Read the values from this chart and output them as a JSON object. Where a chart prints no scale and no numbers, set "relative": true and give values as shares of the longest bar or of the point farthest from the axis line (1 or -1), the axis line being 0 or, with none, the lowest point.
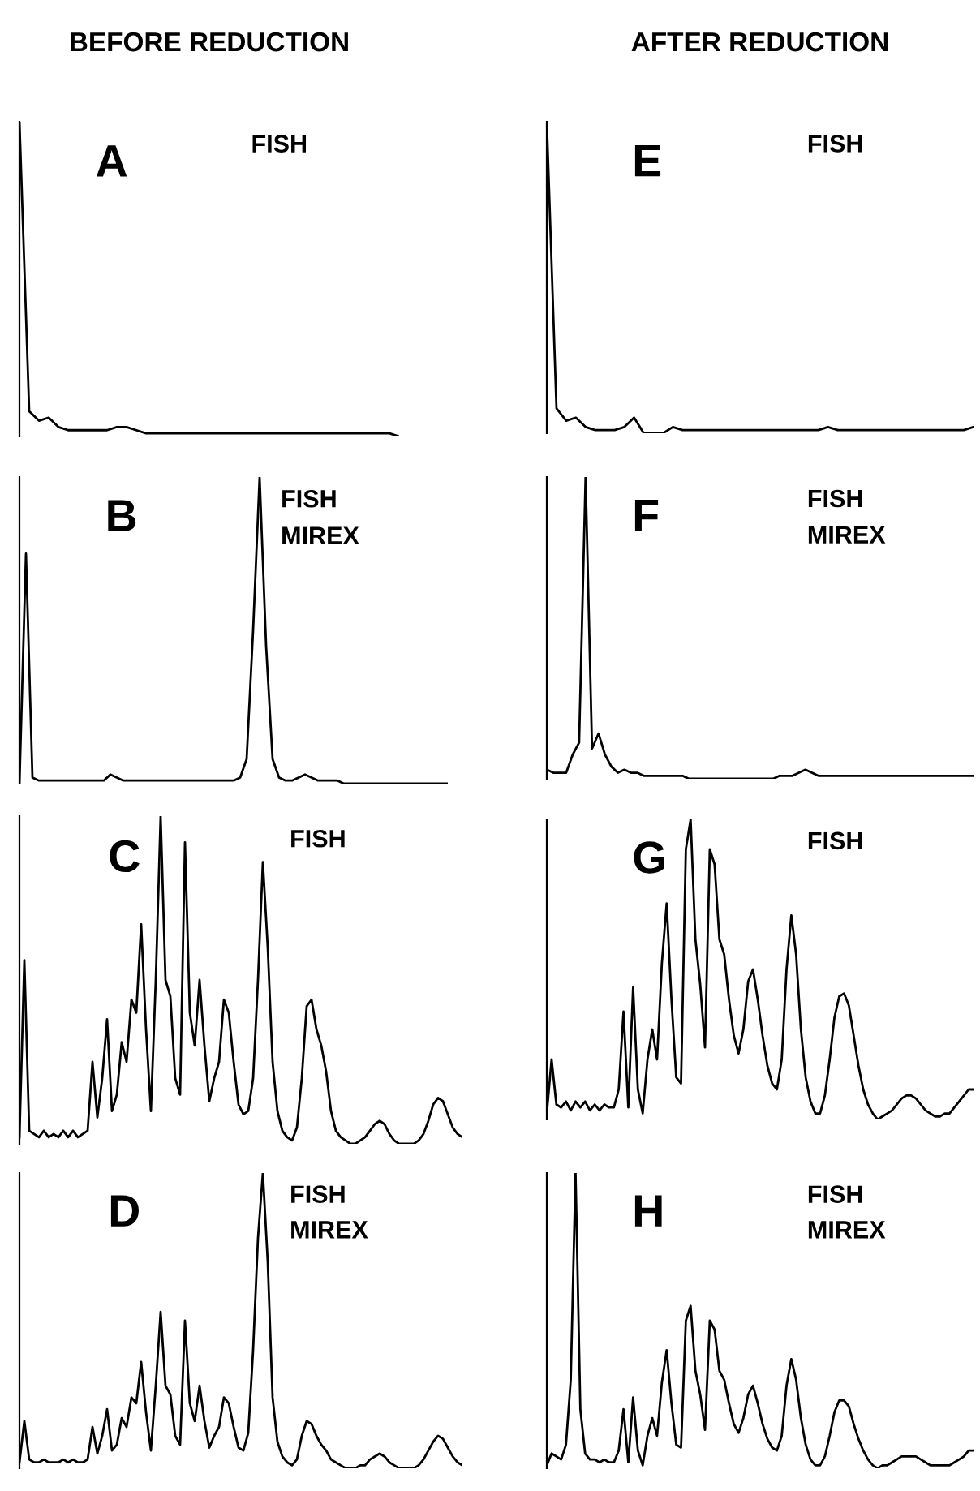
{
  "chart_data": [
    {
      "type": "line",
      "relative": true,
      "title": "A",
      "subtitle": "BEFORE REDUCTION",
      "annotations": [
        "FISH"
      ],
      "categories": [
        null,
        null,
        null,
        null,
        null,
        null,
        null,
        null,
        null,
        null,
        null,
        null,
        null,
        null,
        null,
        null,
        null,
        null,
        null,
        null,
        null,
        null,
        null,
        null,
        null,
        null,
        null,
        null,
        null,
        null,
        null,
        null,
        null,
        null,
        null,
        null,
        null,
        null,
        null,
        null
      ],
      "series": [
        {
          "color": "#000000",
          "values": [
            1.0,
            0.08,
            0.05,
            0.06,
            0.03,
            0.02,
            0.02,
            0.02,
            0.02,
            0.02,
            0.03,
            0.03,
            0.02,
            0.01,
            0.01,
            0.01,
            0.01,
            0.01,
            0.01,
            0.01,
            0.01,
            0.01,
            0.01,
            0.01,
            0.01,
            0.01,
            0.01,
            0.01,
            0.01,
            0.01,
            0.01,
            0.01,
            0.01,
            0.01,
            0.01,
            0.01,
            0.01,
            0.01,
            0.01,
            0
          ]
        }
      ]
    },
    {
      "type": "line",
      "relative": true,
      "title": "B",
      "annotations": [
        "FISH",
        "MIREX"
      ],
      "categories": [
        null,
        null,
        null,
        null,
        null,
        null,
        null,
        null,
        null,
        null,
        null,
        null,
        null,
        null,
        null,
        null,
        null,
        null,
        null,
        null,
        null,
        null,
        null,
        null,
        null,
        null,
        null,
        null,
        null,
        null,
        null,
        null,
        null,
        null,
        null,
        null,
        null,
        null,
        null,
        null,
        null,
        null,
        null,
        null,
        null,
        null,
        null,
        null,
        null,
        null,
        null,
        null,
        null,
        null,
        null,
        null,
        null,
        null,
        null,
        null,
        null,
        null,
        null,
        null,
        null,
        null,
        null
      ],
      "series": [
        {
          "color": "#000000",
          "values": [
            0,
            0.75,
            0.02,
            0.01,
            0.01,
            0.01,
            0.01,
            0.01,
            0.01,
            0.01,
            0.01,
            0.01,
            0.01,
            0.01,
            0.03,
            0.02,
            0.01,
            0.01,
            0.01,
            0.01,
            0.01,
            0.01,
            0.01,
            0.01,
            0.01,
            0.01,
            0.01,
            0.01,
            0.01,
            0.01,
            0.01,
            0.01,
            0.01,
            0.01,
            0.02,
            0.08,
            0.5,
            1.0,
            0.45,
            0.08,
            0.02,
            0.01,
            0.01,
            0.02,
            0.03,
            0.02,
            0.01,
            0.01,
            0.01,
            0.01,
            0,
            0,
            0,
            0,
            0,
            0,
            0,
            0,
            0,
            0,
            0,
            0,
            0,
            0,
            0,
            0,
            0
          ]
        }
      ]
    },
    {
      "type": "line",
      "relative": true,
      "title": "C",
      "annotations": [
        "FISH"
      ],
      "categories": [
        null,
        null,
        null,
        null,
        null,
        null,
        null,
        null,
        null,
        null,
        null,
        null,
        null,
        null,
        null,
        null,
        null,
        null,
        null,
        null,
        null,
        null,
        null,
        null,
        null,
        null,
        null,
        null,
        null,
        null,
        null,
        null,
        null,
        null,
        null,
        null,
        null,
        null,
        null,
        null,
        null,
        null,
        null,
        null,
        null,
        null,
        null,
        null,
        null,
        null,
        null,
        null,
        null,
        null,
        null,
        null,
        null,
        null,
        null,
        null,
        null,
        null,
        null,
        null,
        null,
        null,
        null,
        null,
        null,
        null,
        null,
        null,
        null,
        null,
        null,
        null,
        null,
        null,
        null,
        null,
        null,
        null,
        null,
        null,
        null,
        null,
        null,
        null,
        null,
        null,
        null,
        null
      ],
      "series": [
        {
          "color": "#000000",
          "values": [
            0.02,
            0.56,
            0.04,
            0.03,
            0.02,
            0.04,
            0.02,
            0.03,
            0.02,
            0.04,
            0.02,
            0.04,
            0.02,
            0.03,
            0.04,
            0.25,
            0.08,
            0.2,
            0.38,
            0.1,
            0.15,
            0.31,
            0.25,
            0.44,
            0.4,
            0.67,
            0.35,
            0.1,
            0.5,
            1.0,
            0.5,
            0.45,
            0.2,
            0.15,
            0.92,
            0.4,
            0.3,
            0.5,
            0.3,
            0.13,
            0.2,
            0.25,
            0.44,
            0.4,
            0.25,
            0.12,
            0.09,
            0.1,
            0.2,
            0.5,
            0.86,
            0.6,
            0.25,
            0.1,
            0.04,
            0.02,
            0.01,
            0.05,
            0.2,
            0.42,
            0.44,
            0.35,
            0.3,
            0.22,
            0.1,
            0.04,
            0.02,
            0.01,
            0,
            0,
            0.01,
            0.02,
            0.04,
            0.06,
            0.07,
            0.06,
            0.03,
            0.01,
            0,
            0,
            0,
            0,
            0.01,
            0.03,
            0.07,
            0.12,
            0.14,
            0.13,
            0.09,
            0.05,
            0.03,
            0.02
          ]
        }
      ]
    },
    {
      "type": "line",
      "relative": true,
      "title": "D",
      "annotations": [
        "FISH",
        "MIREX"
      ],
      "categories": [
        null,
        null,
        null,
        null,
        null,
        null,
        null,
        null,
        null,
        null,
        null,
        null,
        null,
        null,
        null,
        null,
        null,
        null,
        null,
        null,
        null,
        null,
        null,
        null,
        null,
        null,
        null,
        null,
        null,
        null,
        null,
        null,
        null,
        null,
        null,
        null,
        null,
        null,
        null,
        null,
        null,
        null,
        null,
        null,
        null,
        null,
        null,
        null,
        null,
        null,
        null,
        null,
        null,
        null,
        null,
        null,
        null,
        null,
        null,
        null,
        null,
        null,
        null,
        null,
        null,
        null,
        null,
        null,
        null,
        null,
        null,
        null,
        null,
        null,
        null,
        null,
        null,
        null,
        null,
        null,
        null,
        null,
        null,
        null,
        null,
        null,
        null,
        null,
        null,
        null,
        null,
        null
      ],
      "series": [
        {
          "color": "#000000",
          "values": [
            0.02,
            0.16,
            0.03,
            0.02,
            0.02,
            0.03,
            0.02,
            0.02,
            0.02,
            0.03,
            0.02,
            0.03,
            0.02,
            0.02,
            0.03,
            0.14,
            0.05,
            0.11,
            0.2,
            0.06,
            0.08,
            0.17,
            0.14,
            0.24,
            0.22,
            0.36,
            0.19,
            0.06,
            0.28,
            0.53,
            0.28,
            0.25,
            0.11,
            0.08,
            0.5,
            0.22,
            0.16,
            0.28,
            0.16,
            0.07,
            0.11,
            0.14,
            0.24,
            0.22,
            0.14,
            0.07,
            0.06,
            0.12,
            0.4,
            0.78,
            1.0,
            0.7,
            0.24,
            0.09,
            0.04,
            0.02,
            0.01,
            0.03,
            0.11,
            0.16,
            0.15,
            0.11,
            0.08,
            0.06,
            0.03,
            0.02,
            0.01,
            0,
            0,
            0,
            0.01,
            0.01,
            0.03,
            0.04,
            0.05,
            0.04,
            0.02,
            0.01,
            0,
            0,
            0,
            0,
            0.01,
            0.03,
            0.06,
            0.09,
            0.11,
            0.1,
            0.07,
            0.04,
            0.02,
            0.01
          ]
        }
      ]
    },
    {
      "type": "line",
      "relative": true,
      "title": "E",
      "subtitle": "AFTER REDUCTION",
      "annotations": [
        "FISH"
      ],
      "categories": [
        null,
        null,
        null,
        null,
        null,
        null,
        null,
        null,
        null,
        null,
        null,
        null,
        null,
        null,
        null,
        null,
        null,
        null,
        null,
        null,
        null,
        null,
        null,
        null,
        null,
        null,
        null,
        null,
        null,
        null,
        null,
        null,
        null,
        null,
        null,
        null,
        null,
        null,
        null,
        null,
        null,
        null,
        null,
        null,
        null
      ],
      "series": [
        {
          "color": "#000000",
          "values": [
            1.0,
            0.08,
            0.04,
            0.05,
            0.02,
            0.01,
            0.01,
            0.01,
            0.02,
            0.05,
            0,
            0,
            0,
            0.02,
            0.01,
            0.01,
            0.01,
            0.01,
            0.01,
            0.01,
            0.01,
            0.01,
            0.01,
            0.01,
            0.01,
            0.01,
            0.01,
            0.01,
            0.01,
            0.02,
            0.01,
            0.01,
            0.01,
            0.01,
            0.01,
            0.01,
            0.01,
            0.01,
            0.01,
            0.01,
            0.01,
            0.01,
            0.01,
            0.01,
            0.02
          ]
        }
      ]
    },
    {
      "type": "line",
      "relative": true,
      "title": "F",
      "annotations": [
        "FISH",
        "MIREX"
      ],
      "categories": [
        null,
        null,
        null,
        null,
        null,
        null,
        null,
        null,
        null,
        null,
        null,
        null,
        null,
        null,
        null,
        null,
        null,
        null,
        null,
        null,
        null,
        null,
        null,
        null,
        null,
        null,
        null,
        null,
        null,
        null,
        null,
        null,
        null,
        null,
        null,
        null,
        null,
        null,
        null,
        null,
        null,
        null,
        null,
        null,
        null,
        null,
        null,
        null,
        null,
        null,
        null,
        null,
        null,
        null,
        null,
        null,
        null,
        null,
        null,
        null,
        null,
        null,
        null,
        null,
        null,
        null,
        null
      ],
      "series": [
        {
          "color": "#000000",
          "values": [
            0.03,
            0.02,
            0.02,
            0.02,
            0.08,
            0.12,
            1.0,
            0.1,
            0.15,
            0.08,
            0.04,
            0.02,
            0.03,
            0.02,
            0.02,
            0.01,
            0.01,
            0.01,
            0.01,
            0.01,
            0.01,
            0.01,
            0,
            0,
            0,
            0,
            0,
            0,
            0,
            0,
            0,
            0,
            0,
            0,
            0,
            0,
            0.01,
            0.01,
            0.01,
            0.02,
            0.03,
            0.02,
            0.01,
            0.01,
            0.01,
            0.01,
            0.01,
            0.01,
            0.01,
            0.01,
            0.01,
            0.01,
            0.01,
            0.01,
            0.01,
            0.01,
            0.01,
            0.01,
            0.01,
            0.01,
            0.01,
            0.01,
            0.01,
            0.01,
            0.01,
            0.01,
            0.01
          ]
        }
      ]
    },
    {
      "type": "line",
      "relative": true,
      "title": "G",
      "annotations": [
        "FISH"
      ],
      "categories": [
        null,
        null,
        null,
        null,
        null,
        null,
        null,
        null,
        null,
        null,
        null,
        null,
        null,
        null,
        null,
        null,
        null,
        null,
        null,
        null,
        null,
        null,
        null,
        null,
        null,
        null,
        null,
        null,
        null,
        null,
        null,
        null,
        null,
        null,
        null,
        null,
        null,
        null,
        null,
        null,
        null,
        null,
        null,
        null,
        null,
        null,
        null,
        null,
        null,
        null,
        null,
        null,
        null,
        null,
        null,
        null,
        null,
        null,
        null,
        null,
        null,
        null,
        null,
        null,
        null,
        null,
        null,
        null,
        null,
        null,
        null,
        null,
        null,
        null,
        null,
        null,
        null,
        null,
        null,
        null,
        null,
        null,
        null,
        null,
        null,
        null,
        null,
        null,
        null,
        null
      ],
      "series": [
        {
          "color": "#000000",
          "values": [
            0.02,
            0.2,
            0.05,
            0.04,
            0.06,
            0.03,
            0.06,
            0.04,
            0.06,
            0.03,
            0.05,
            0.03,
            0.05,
            0.04,
            0.04,
            0.1,
            0.36,
            0.04,
            0.44,
            0.1,
            0.02,
            0.2,
            0.3,
            0.2,
            0.52,
            0.72,
            0.4,
            0.14,
            0.12,
            0.9,
            1.0,
            0.6,
            0.45,
            0.24,
            0.9,
            0.85,
            0.6,
            0.55,
            0.4,
            0.28,
            0.22,
            0.3,
            0.46,
            0.5,
            0.4,
            0.28,
            0.18,
            0.12,
            0.1,
            0.2,
            0.5,
            0.68,
            0.55,
            0.3,
            0.14,
            0.06,
            0.02,
            0.02,
            0.08,
            0.2,
            0.34,
            0.41,
            0.42,
            0.38,
            0.28,
            0.18,
            0.1,
            0.05,
            0.02,
            0,
            0.01,
            0.02,
            0.03,
            0.05,
            0.07,
            0.08,
            0.08,
            0.07,
            0.05,
            0.03,
            0.02,
            0.01,
            0.01,
            0.02,
            0.02,
            0.04,
            0.06,
            0.08,
            0.1,
            0.1
          ]
        }
      ]
    },
    {
      "type": "line",
      "relative": true,
      "title": "H",
      "annotations": [
        "FISH",
        "MIREX"
      ],
      "categories": [
        null,
        null,
        null,
        null,
        null,
        null,
        null,
        null,
        null,
        null,
        null,
        null,
        null,
        null,
        null,
        null,
        null,
        null,
        null,
        null,
        null,
        null,
        null,
        null,
        null,
        null,
        null,
        null,
        null,
        null,
        null,
        null,
        null,
        null,
        null,
        null,
        null,
        null,
        null,
        null,
        null,
        null,
        null,
        null,
        null,
        null,
        null,
        null,
        null,
        null,
        null,
        null,
        null,
        null,
        null,
        null,
        null,
        null,
        null,
        null,
        null,
        null,
        null,
        null,
        null,
        null,
        null,
        null,
        null,
        null,
        null,
        null,
        null,
        null,
        null,
        null,
        null,
        null,
        null,
        null,
        null,
        null,
        null,
        null,
        null,
        null,
        null,
        null,
        null,
        null
      ],
      "series": [
        {
          "color": "#000000",
          "values": [
            0.01,
            0.05,
            0.04,
            0.03,
            0.08,
            0.3,
            1.0,
            0.2,
            0.05,
            0.03,
            0.03,
            0.02,
            0.03,
            0.02,
            0.02,
            0.06,
            0.2,
            0.02,
            0.24,
            0.06,
            0.01,
            0.11,
            0.17,
            0.11,
            0.29,
            0.4,
            0.22,
            0.08,
            0.07,
            0.5,
            0.55,
            0.33,
            0.25,
            0.13,
            0.5,
            0.47,
            0.33,
            0.3,
            0.22,
            0.15,
            0.12,
            0.17,
            0.25,
            0.28,
            0.22,
            0.15,
            0.1,
            0.07,
            0.06,
            0.11,
            0.28,
            0.37,
            0.3,
            0.17,
            0.08,
            0.03,
            0.01,
            0.01,
            0.04,
            0.11,
            0.19,
            0.23,
            0.23,
            0.21,
            0.15,
            0.1,
            0.06,
            0.03,
            0.01,
            0,
            0.01,
            0.01,
            0.02,
            0.03,
            0.04,
            0.04,
            0.04,
            0.04,
            0.03,
            0.02,
            0.01,
            0.01,
            0.01,
            0.01,
            0.01,
            0.02,
            0.03,
            0.04,
            0.06,
            0.06
          ]
        }
      ]
    }
  ]
}
